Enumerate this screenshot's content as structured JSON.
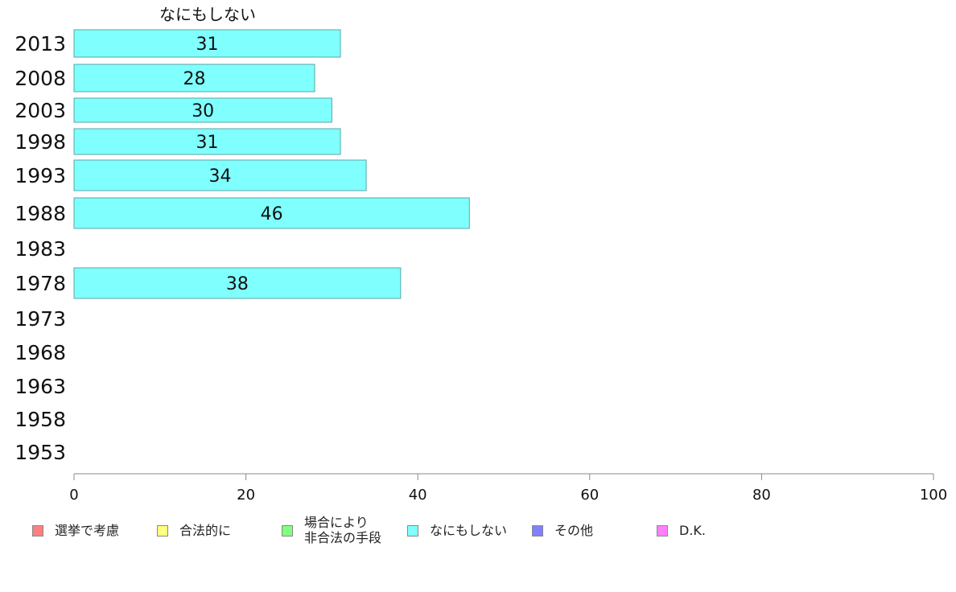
{
  "chart_data": {
    "type": "bar",
    "orientation": "horizontal",
    "title": "なにもしない",
    "categories": [
      "2013",
      "2008",
      "2003",
      "1998",
      "1993",
      "1988",
      "1983",
      "1978",
      "1973",
      "1968",
      "1963",
      "1958",
      "1953"
    ],
    "series": [
      {
        "name": "なにもしない",
        "color": "#80ffff",
        "values": [
          31,
          28,
          30,
          31,
          34,
          46,
          null,
          38,
          null,
          null,
          null,
          null,
          null
        ]
      }
    ],
    "xlim": [
      0,
      100
    ],
    "xticks": [
      0,
      20,
      40,
      60,
      80,
      100
    ],
    "legend": {
      "placement": "bottom",
      "items": [
        {
          "label": "選挙で考慮",
          "color": "#ff8080"
        },
        {
          "label": "合法的に",
          "color": "#ffff80"
        },
        {
          "label": "場合により\n非合法の手段",
          "color": "#80ff80"
        },
        {
          "label": "なにもしない",
          "color": "#80ffff"
        },
        {
          "label": "その他",
          "color": "#8080ff"
        },
        {
          "label": "D.K.",
          "color": "#ff80ff"
        }
      ]
    }
  }
}
